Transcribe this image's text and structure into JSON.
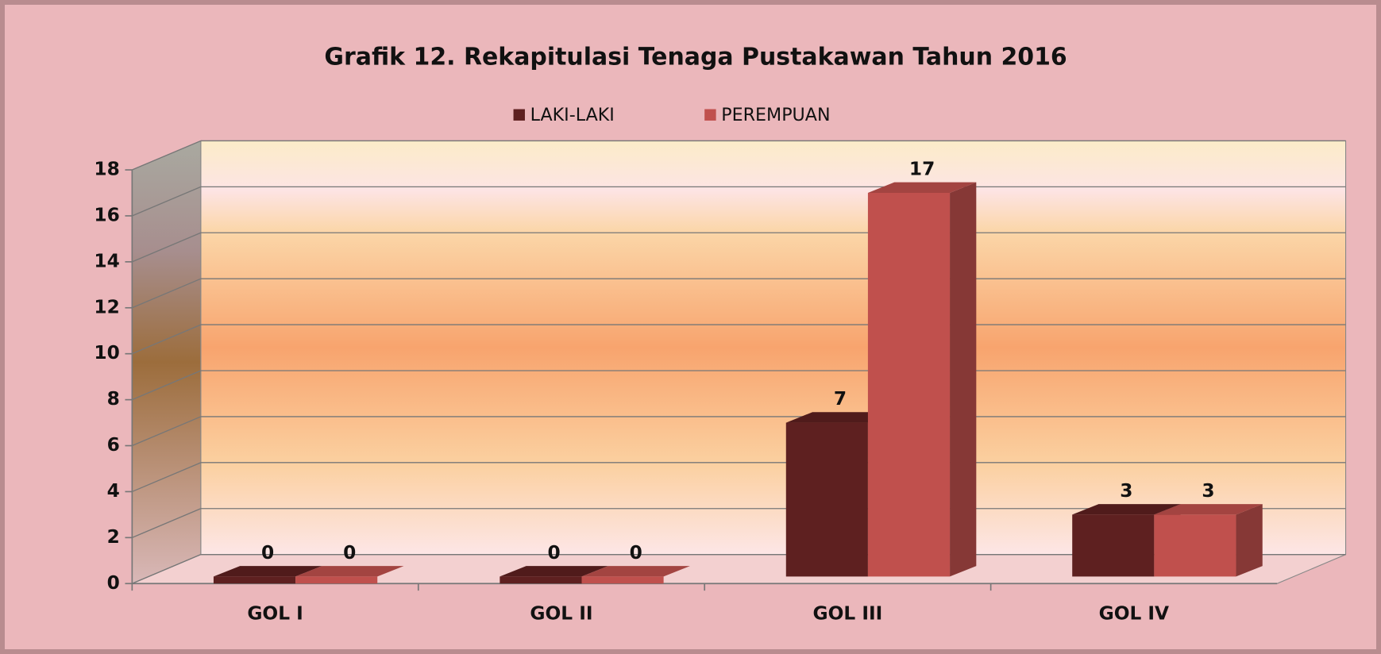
{
  "chart_data": {
    "type": "bar3d",
    "title": "Grafik 12. Rekapitulasi Tenaga Pustakawan Tahun  2016",
    "categories": [
      "GOL I",
      "GOL II",
      "GOL III",
      "GOL IV"
    ],
    "series": [
      {
        "name": "LAKI-LAKI",
        "color": "#5e2020",
        "values": [
          0,
          0,
          7,
          3
        ]
      },
      {
        "name": "PEREMPUAN",
        "color": "#c0504d",
        "values": [
          0,
          0,
          17,
          3
        ]
      }
    ],
    "ylim": [
      0,
      18
    ],
    "yticks": [
      0,
      2,
      4,
      6,
      8,
      10,
      12,
      14,
      16,
      18
    ],
    "grid": true,
    "legend": "top"
  }
}
